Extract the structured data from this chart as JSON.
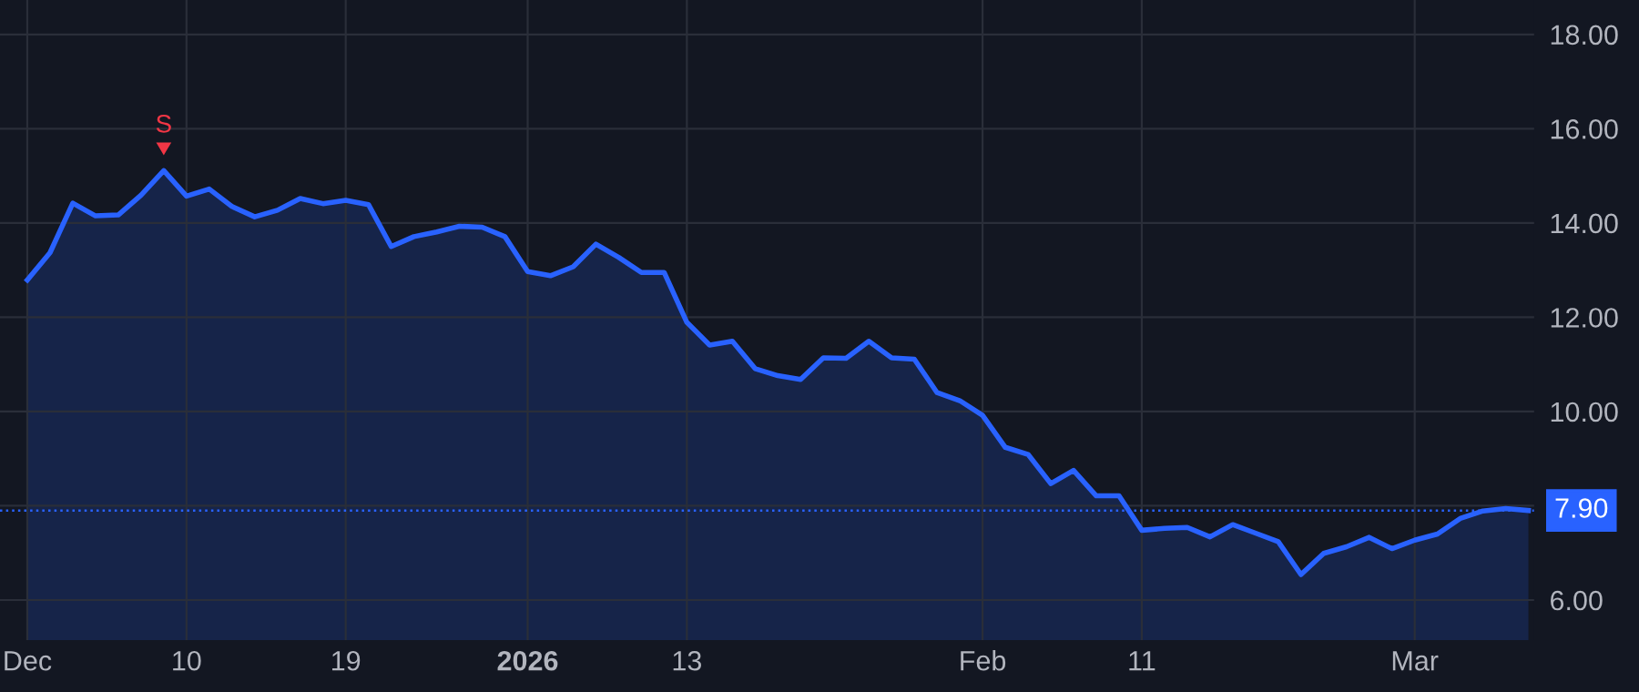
{
  "chart_data": {
    "type": "area",
    "categories": [
      "Dec",
      null,
      null,
      null,
      null,
      null,
      null,
      "10",
      null,
      null,
      null,
      null,
      null,
      null,
      "19",
      null,
      null,
      null,
      null,
      null,
      null,
      null,
      "2026",
      null,
      null,
      null,
      null,
      null,
      null,
      "13",
      null,
      null,
      null,
      null,
      null,
      null,
      null,
      null,
      null,
      null,
      null,
      null,
      "Feb",
      null,
      null,
      null,
      null,
      null,
      null,
      "11",
      null,
      null,
      null,
      null,
      null,
      null,
      null,
      null,
      null,
      null,
      null,
      "Mar",
      null,
      null,
      null,
      null,
      null
    ],
    "series": [
      {
        "color": "#2962ff",
        "values": [
          12.79,
          13.37,
          14.42,
          14.15,
          14.17,
          14.59,
          15.11,
          14.57,
          14.72,
          14.35,
          14.13,
          14.27,
          14.52,
          14.41,
          14.48,
          14.39,
          13.5,
          13.71,
          13.81,
          13.93,
          13.91,
          13.71,
          12.97,
          12.88,
          13.07,
          13.55,
          13.27,
          12.95,
          12.95,
          11.89,
          11.41,
          11.49,
          10.91,
          10.76,
          10.68,
          11.14,
          11.13,
          11.49,
          11.14,
          11.11,
          10.4,
          10.23,
          9.92,
          9.24,
          9.09,
          8.47,
          8.75,
          8.21,
          8.21,
          7.48,
          7.52,
          7.54,
          7.34,
          7.6,
          7.42,
          7.24,
          6.54,
          6.99,
          7.13,
          7.33,
          7.09,
          7.27,
          7.4,
          7.73,
          7.89,
          7.94,
          7.9
        ]
      }
    ],
    "ylim": [
      5.15,
      18.73
    ],
    "yticks": [
      {
        "value": 6,
        "label": "6.00"
      },
      {
        "value": 8,
        "label": null
      },
      {
        "value": 10,
        "label": "10.00"
      },
      {
        "value": 12,
        "label": "12.00"
      },
      {
        "value": 14,
        "label": "14.00"
      },
      {
        "value": 16,
        "label": "16.00"
      },
      {
        "value": 18,
        "label": "18.00"
      }
    ],
    "ref_lines": [
      {
        "axis": "y",
        "value": 7.9,
        "label": "7.90",
        "color": "#2962ff",
        "line_style": "dotted"
      }
    ],
    "annotations": [
      {
        "text": "S",
        "y": 15.11
      }
    ],
    "grid": true,
    "legend": false
  }
}
